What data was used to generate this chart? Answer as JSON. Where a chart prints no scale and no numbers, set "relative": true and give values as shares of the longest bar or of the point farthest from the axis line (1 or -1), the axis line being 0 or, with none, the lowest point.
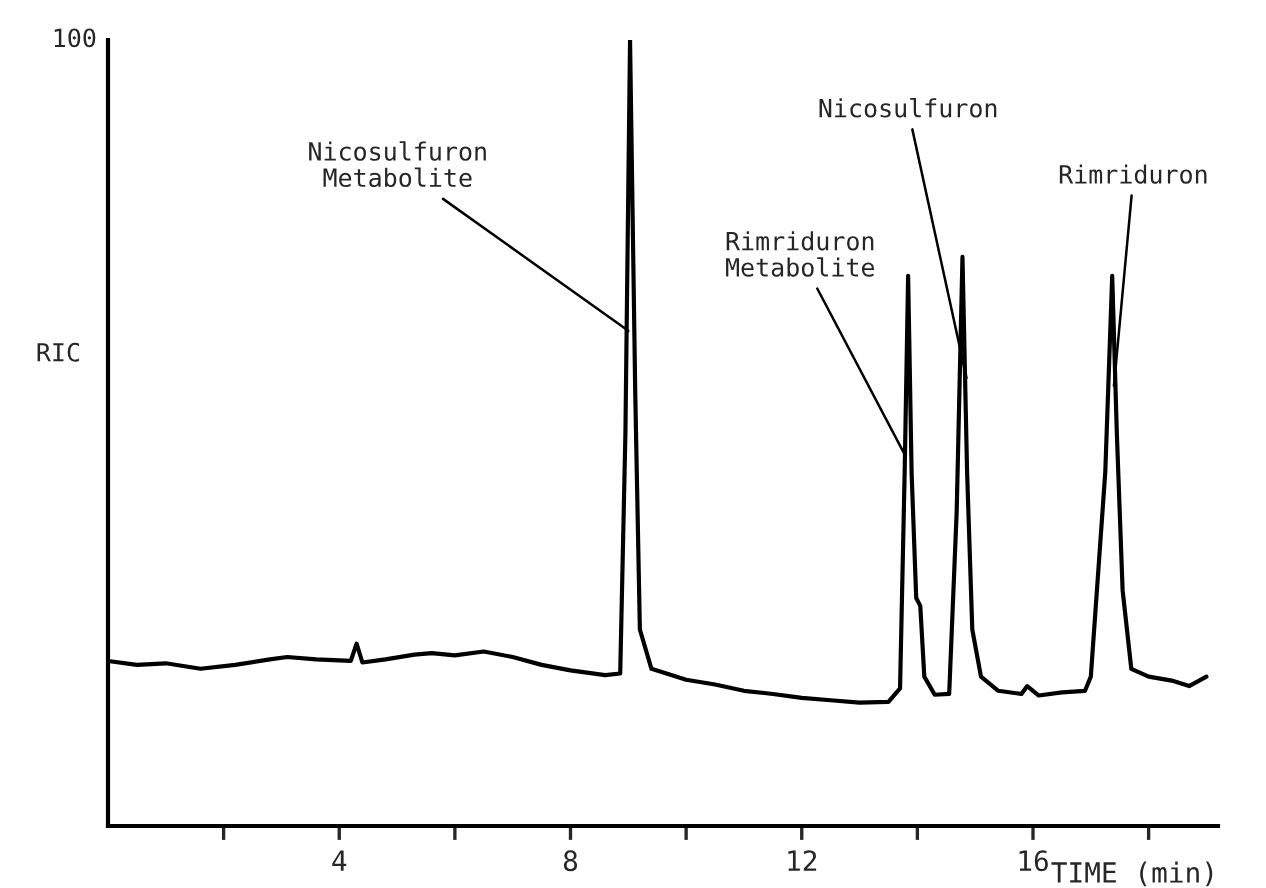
{
  "chart_data": {
    "type": "line",
    "relative": true,
    "xlabel": "TIME (min)",
    "ylabel": "RIC",
    "x": [
      0,
      0.5,
      1.0,
      1.6,
      2.2,
      2.8,
      3.1,
      3.6,
      4.2,
      4.3,
      4.4,
      4.8,
      5.3,
      5.6,
      6.0,
      6.5,
      7.0,
      7.5,
      8.0,
      8.6,
      8.86,
      8.95,
      9.03,
      9.12,
      9.2,
      9.4,
      10,
      10.5,
      11,
      11.5,
      12,
      12.5,
      13,
      13.5,
      13.7,
      13.78,
      13.84,
      13.9,
      13.98,
      14.05,
      14.12,
      14.3,
      14.55,
      14.68,
      14.78,
      14.86,
      14.95,
      15.1,
      15.4,
      15.8,
      15.9,
      16.1,
      16.5,
      16.9,
      17.0,
      17.25,
      17.37,
      17.45,
      17.55,
      17.7,
      18.0,
      18.4,
      18.7,
      19.0
    ],
    "series": [
      {
        "color": "#000000",
        "values": [
          0.21,
          0.205,
          0.207,
          0.2,
          0.205,
          0.212,
          0.215,
          0.212,
          0.21,
          0.232,
          0.208,
          0.212,
          0.218,
          0.22,
          0.217,
          0.222,
          0.215,
          0.205,
          0.198,
          0.192,
          0.194,
          0.5,
          1.0,
          0.55,
          0.25,
          0.2,
          0.186,
          0.18,
          0.172,
          0.168,
          0.163,
          0.16,
          0.157,
          0.158,
          0.175,
          0.45,
          0.7,
          0.45,
          0.29,
          0.28,
          0.19,
          0.167,
          0.168,
          0.4,
          0.724,
          0.45,
          0.25,
          0.19,
          0.172,
          0.168,
          0.178,
          0.166,
          0.17,
          0.172,
          0.19,
          0.45,
          0.7,
          0.5,
          0.3,
          0.2,
          0.19,
          0.185,
          0.178,
          0.19
        ]
      }
    ],
    "xlim": [
      0,
      19.2
    ],
    "xticks": [
      {
        "value": 2,
        "label": null
      },
      4,
      {
        "value": 6,
        "label": null
      },
      8,
      {
        "value": 10,
        "label": null
      },
      12,
      {
        "value": 14,
        "label": null
      },
      16,
      {
        "value": 18,
        "label": null
      }
    ],
    "marker": "none",
    "line_style": "solid",
    "annotations": [
      {
        "text": "Nicosulfuron\nMetabolite",
        "x": 9.0,
        "y": 0.63
      },
      {
        "text": "Rimriduron\nMetabolite",
        "x": 13.8,
        "y": 0.47
      },
      {
        "text": "Nicosulfuron",
        "x": 14.85,
        "y": 0.57
      },
      {
        "text": "Rimriduron",
        "x": 17.4,
        "y": 0.56
      },
      "100"
    ]
  }
}
